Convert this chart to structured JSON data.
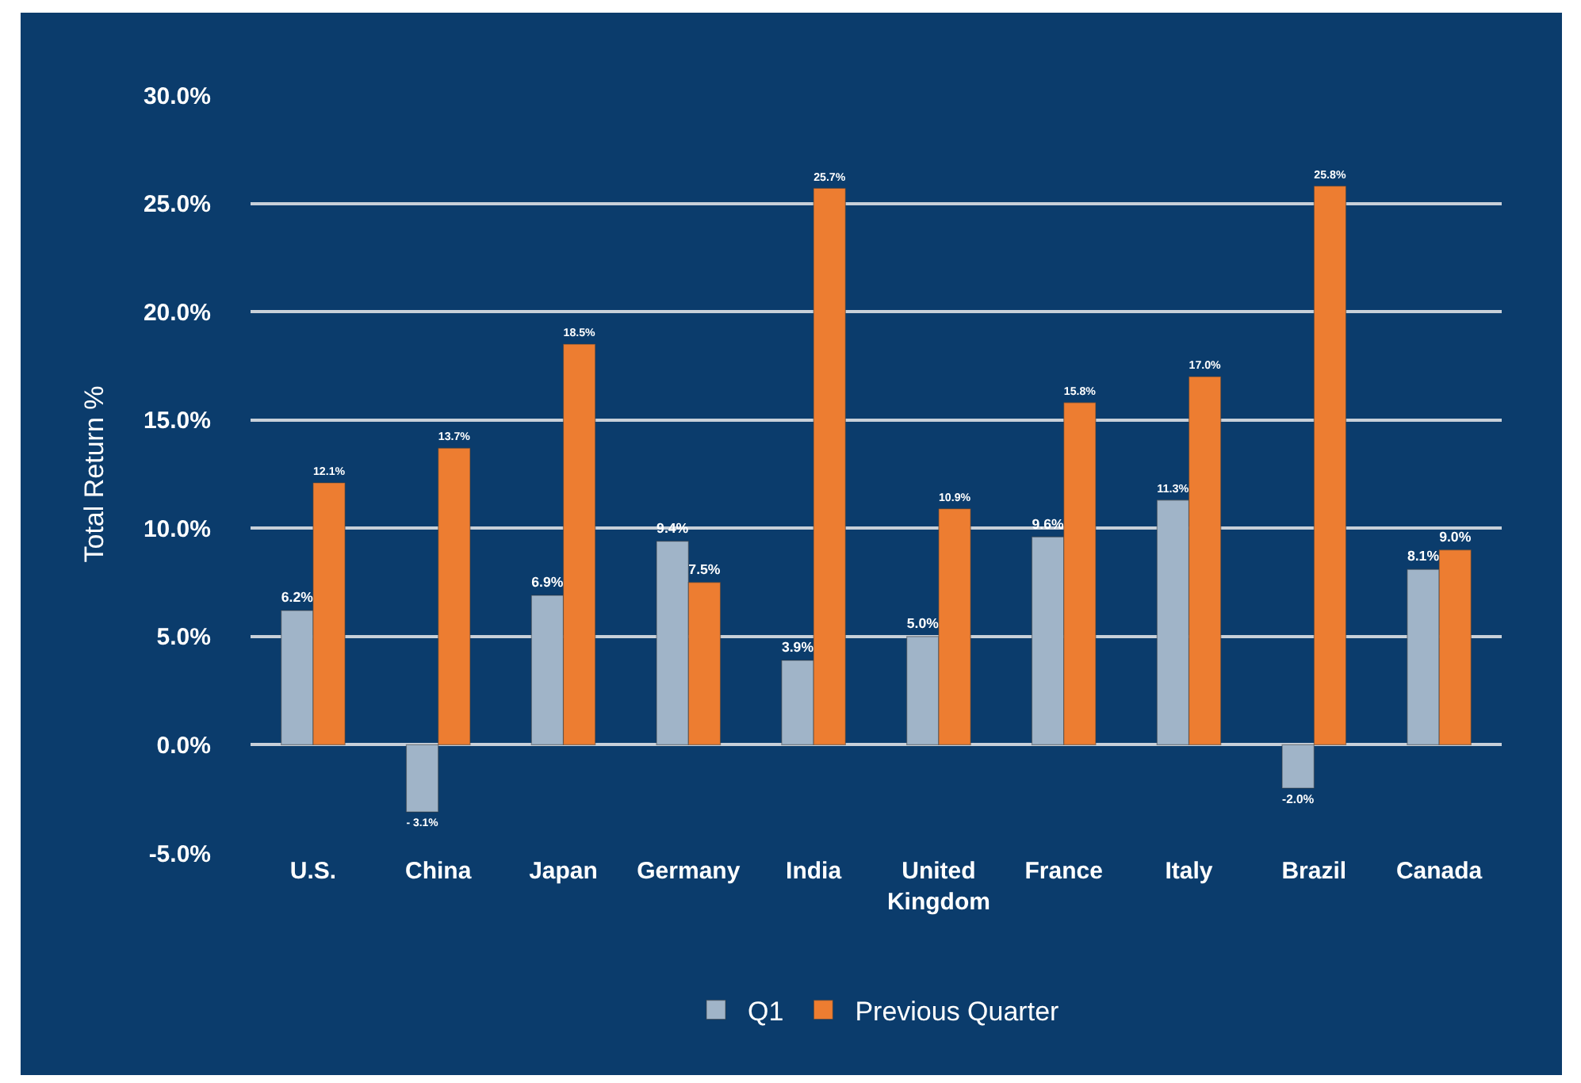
{
  "chart_data": {
    "type": "bar",
    "ylabel": "Total Return %",
    "categories": [
      "U.S.",
      "China",
      "Japan",
      "Germany",
      "India",
      "United Kingdom",
      "France",
      "Italy",
      "Brazil",
      "Canada"
    ],
    "series": [
      {
        "name": "Q1",
        "color": "#a0b4c8",
        "values": [
          6.2,
          -3.1,
          6.9,
          9.4,
          3.9,
          5.0,
          9.6,
          11.3,
          -2.0,
          8.1
        ],
        "value_labels": [
          "6.2%",
          "- 3.1%",
          "6.9%",
          "9.4%",
          "3.9%",
          "5.0%",
          "9.6%",
          "11.3%",
          "-2.0%",
          "8.1%"
        ]
      },
      {
        "name": "Previous Quarter",
        "color": "#ed7d31",
        "values": [
          12.1,
          13.7,
          18.5,
          7.5,
          25.7,
          10.9,
          15.8,
          17.0,
          25.8,
          9.0
        ],
        "value_labels": [
          "12.1%",
          "13.7%",
          "18.5%",
          "7.5%",
          "25.7%",
          "10.9%",
          "15.8%",
          "17.0%",
          "25.8%",
          "9.0%"
        ]
      }
    ],
    "ylim": [
      -5,
      30
    ],
    "yticks": [
      {
        "value": -5,
        "label": "-5.0%"
      },
      {
        "value": 0,
        "label": "0.0%"
      },
      {
        "value": 5,
        "label": "5.0%"
      },
      {
        "value": 10,
        "label": "10.0%"
      },
      {
        "value": 15,
        "label": "15.0%"
      },
      {
        "value": 20,
        "label": "20.0%"
      },
      {
        "value": 25,
        "label": "25.0%"
      },
      {
        "value": 30,
        "label": "30.0%"
      }
    ],
    "grid": "y",
    "legend": "bottom"
  }
}
